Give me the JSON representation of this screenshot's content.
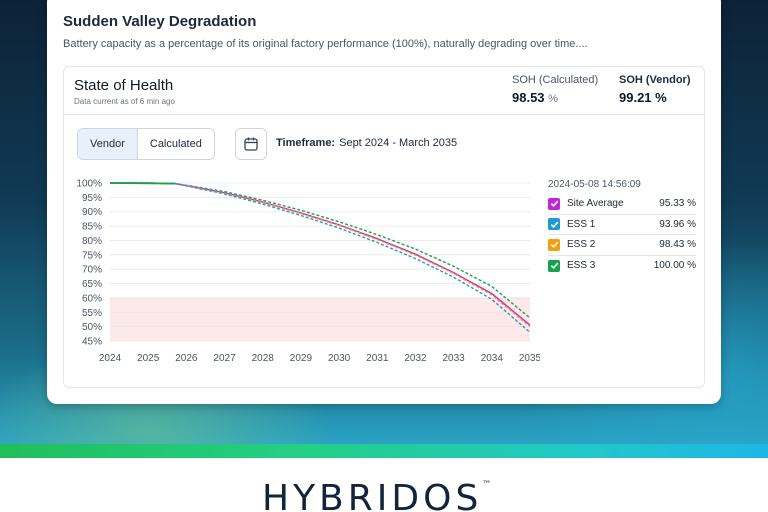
{
  "card": {
    "title": "Sudden Valley Degradation",
    "description": "Battery capacity as a percentage of its original factory performance (100%), naturally degrading over time...."
  },
  "panel": {
    "title": "State of Health",
    "subtitle": "Data current as of 6 min ago",
    "soh_calculated": {
      "label": "SOH (Calculated)",
      "value": "98.53",
      "unit": "%"
    },
    "soh_vendor": {
      "label": "SOH (Vendor)",
      "value": "99.21",
      "unit": "%"
    }
  },
  "toolbar": {
    "vendor_label": "Vendor",
    "calculated_label": "Calculated",
    "timeframe_label": "Timeframe:",
    "timeframe_value": "Sept 2024 - March 2035"
  },
  "legend": {
    "timestamp": "2024-05-08 14:56:09",
    "items": [
      {
        "name": "Site Average",
        "value": "95.33 %",
        "color": "#c026d3"
      },
      {
        "name": "ESS 1",
        "value": "93.96 %",
        "color": "#1f9bd1"
      },
      {
        "name": "ESS 2",
        "value": "98.43 %",
        "color": "#f59e0b"
      },
      {
        "name": "ESS 3",
        "value": "100.00 %",
        "color": "#16a34a"
      }
    ]
  },
  "brand": {
    "name": "HYBRIDOS",
    "tm": "™"
  },
  "chart_data": {
    "type": "line",
    "title": "State of Health",
    "xlabel": "",
    "ylabel": "",
    "ylim": [
      45,
      100
    ],
    "xlim": [
      2024,
      2035
    ],
    "x_ticks": [
      "2024",
      "2025",
      "2026",
      "2027",
      "2028",
      "2029",
      "2030",
      "2031",
      "2032",
      "2033",
      "2034",
      "2035"
    ],
    "y_ticks": [
      "100%",
      "95%",
      "90%",
      "85%",
      "80%",
      "75%",
      "70%",
      "65%",
      "60%",
      "55%",
      "50%",
      "45%"
    ],
    "threshold_band": [
      45,
      60
    ],
    "series": [
      {
        "name": "ESS 3",
        "color": "#16a34a",
        "style": "dashed",
        "x": [
          2024,
          2025,
          2025.7,
          2026,
          2027,
          2028,
          2029,
          2030,
          2031,
          2032,
          2033,
          2034,
          2035
        ],
        "y": [
          100,
          100,
          99.8,
          99.2,
          97,
          94,
          90.5,
          86.5,
          82,
          77,
          71,
          64,
          53
        ]
      },
      {
        "name": "Site Average",
        "color": "#c026d3",
        "style": "solid",
        "x": [
          2024,
          2025,
          2025.7,
          2026,
          2027,
          2028,
          2029,
          2030,
          2031,
          2032,
          2033,
          2034,
          2035
        ],
        "y": [
          100,
          100,
          99.8,
          99.1,
          96.6,
          93.4,
          89.6,
          85.4,
          80.6,
          75.2,
          68.8,
          61.5,
          50.5
        ]
      },
      {
        "name": "ESS 2",
        "color": "#f59e0b",
        "style": "dashed",
        "x": [
          2024,
          2025,
          2025.7,
          2026,
          2027,
          2028,
          2029,
          2030,
          2031,
          2032,
          2033,
          2034,
          2035
        ],
        "y": [
          100,
          100,
          99.8,
          99.1,
          96.5,
          93.2,
          89.4,
          85.2,
          80.3,
          74.9,
          68.5,
          61,
          50
        ]
      },
      {
        "name": "ESS 1",
        "color": "#1f9bd1",
        "style": "dashed",
        "x": [
          2024,
          2025,
          2025.7,
          2026,
          2027,
          2028,
          2029,
          2030,
          2031,
          2032,
          2033,
          2034,
          2035
        ],
        "y": [
          100,
          100,
          99.8,
          99,
          96.2,
          92.7,
          88.7,
          84.3,
          79.3,
          73.7,
          67.2,
          59.5,
          48
        ]
      }
    ]
  }
}
